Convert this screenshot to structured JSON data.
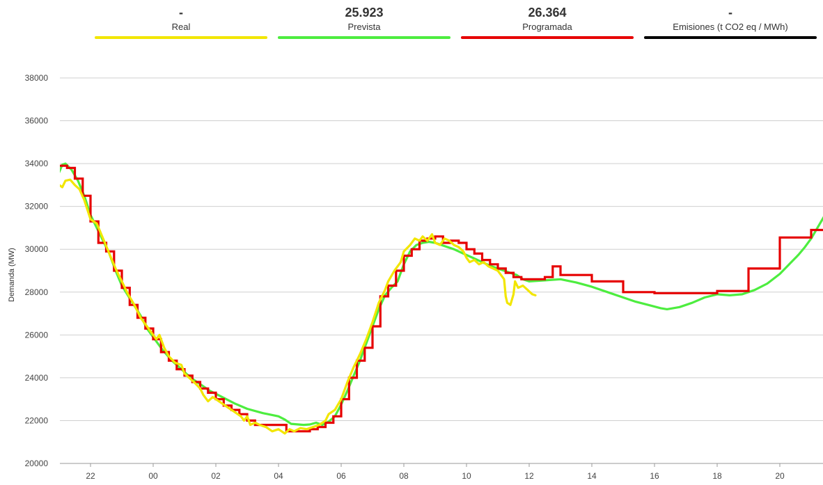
{
  "legend": [
    {
      "name": "Real",
      "value": "-",
      "color": "#f2e600"
    },
    {
      "name": "Prevista",
      "value": "25.923",
      "color": "#4ded3f"
    },
    {
      "name": "Programada",
      "value": "26.364",
      "color": "#e60000"
    },
    {
      "name": "Emisiones (t CO2 eq / MWh)",
      "value": "-",
      "color": "#000000"
    }
  ],
  "chart_data": {
    "type": "line",
    "ylabel": "Demanda (MW)",
    "xlabel": "",
    "ylim": [
      20000,
      38000
    ],
    "yticks": [
      20000,
      22000,
      24000,
      26000,
      28000,
      30000,
      32000,
      34000,
      36000,
      38000
    ],
    "xlim_hours": [
      21,
      45.3
    ],
    "xticks": [
      {
        "h": 22,
        "label": "22"
      },
      {
        "h": 24,
        "label": "00"
      },
      {
        "h": 26,
        "label": "02"
      },
      {
        "h": 28,
        "label": "04"
      },
      {
        "h": 30,
        "label": "06"
      },
      {
        "h": 32,
        "label": "08"
      },
      {
        "h": 34,
        "label": "10"
      },
      {
        "h": 36,
        "label": "12"
      },
      {
        "h": 38,
        "label": "14"
      },
      {
        "h": 40,
        "label": "16"
      },
      {
        "h": 42,
        "label": "18"
      },
      {
        "h": 44,
        "label": "20"
      }
    ],
    "grid": "horizontal",
    "x_units": "hour of day (continuing past midnight)",
    "series": [
      {
        "name": "Prevista",
        "color": "#4ded3f",
        "step": false,
        "points": [
          [
            21.0,
            33600
          ],
          [
            21.1,
            33950
          ],
          [
            21.2,
            34000
          ],
          [
            21.4,
            33700
          ],
          [
            21.6,
            33200
          ],
          [
            21.8,
            32500
          ],
          [
            22.0,
            31600
          ],
          [
            22.3,
            30700
          ],
          [
            22.6,
            29800
          ],
          [
            22.8,
            29000
          ],
          [
            23.0,
            28300
          ],
          [
            23.3,
            27600
          ],
          [
            23.6,
            26900
          ],
          [
            23.8,
            26300
          ],
          [
            24.0,
            25900
          ],
          [
            24.3,
            25300
          ],
          [
            24.6,
            24800
          ],
          [
            24.9,
            24400
          ],
          [
            25.2,
            24000
          ],
          [
            25.5,
            23700
          ],
          [
            25.8,
            23400
          ],
          [
            26.2,
            23100
          ],
          [
            26.6,
            22800
          ],
          [
            27.0,
            22550
          ],
          [
            27.5,
            22350
          ],
          [
            28.0,
            22200
          ],
          [
            28.2,
            22050
          ],
          [
            28.4,
            21850
          ],
          [
            28.8,
            21800
          ],
          [
            29.0,
            21820
          ],
          [
            29.2,
            21900
          ],
          [
            29.4,
            21800
          ],
          [
            29.6,
            21950
          ],
          [
            29.8,
            22200
          ],
          [
            30.0,
            22750
          ],
          [
            30.2,
            23400
          ],
          [
            30.4,
            24100
          ],
          [
            30.6,
            24800
          ],
          [
            30.8,
            25600
          ],
          [
            31.0,
            26400
          ],
          [
            31.2,
            27200
          ],
          [
            31.4,
            27850
          ],
          [
            31.6,
            28200
          ],
          [
            31.8,
            28500
          ],
          [
            32.0,
            29300
          ],
          [
            32.2,
            29900
          ],
          [
            32.4,
            30200
          ],
          [
            32.6,
            30300
          ],
          [
            32.8,
            30350
          ],
          [
            33.0,
            30300
          ],
          [
            33.3,
            30150
          ],
          [
            33.6,
            30000
          ],
          [
            33.9,
            29800
          ],
          [
            34.2,
            29600
          ],
          [
            34.5,
            29400
          ],
          [
            34.8,
            29200
          ],
          [
            35.1,
            29050
          ],
          [
            35.4,
            28900
          ],
          [
            35.6,
            28800
          ],
          [
            35.8,
            28600
          ],
          [
            36.0,
            28500
          ],
          [
            36.5,
            28550
          ],
          [
            37.0,
            28600
          ],
          [
            37.5,
            28450
          ],
          [
            38.0,
            28250
          ],
          [
            38.5,
            28000
          ],
          [
            39.0,
            27750
          ],
          [
            39.4,
            27550
          ],
          [
            39.8,
            27400
          ],
          [
            40.2,
            27250
          ],
          [
            40.4,
            27200
          ],
          [
            40.8,
            27300
          ],
          [
            41.2,
            27500
          ],
          [
            41.6,
            27750
          ],
          [
            42.0,
            27900
          ],
          [
            42.4,
            27850
          ],
          [
            42.8,
            27900
          ],
          [
            43.2,
            28100
          ],
          [
            43.6,
            28400
          ],
          [
            44.0,
            28850
          ],
          [
            44.3,
            29300
          ],
          [
            44.6,
            29750
          ],
          [
            44.8,
            30100
          ],
          [
            45.0,
            30500
          ],
          [
            45.2,
            31000
          ],
          [
            45.4,
            31500
          ],
          [
            45.6,
            32000
          ],
          [
            45.8,
            32400
          ],
          [
            45.9,
            32580
          ],
          [
            46.0,
            32550
          ],
          [
            46.1,
            32350
          ]
        ]
      },
      {
        "name": "Programada",
        "color": "#e60000",
        "step": true,
        "points": [
          [
            21.0,
            33900
          ],
          [
            21.25,
            33800
          ],
          [
            21.5,
            33300
          ],
          [
            21.75,
            32500
          ],
          [
            22.0,
            31300
          ],
          [
            22.25,
            30300
          ],
          [
            22.5,
            29900
          ],
          [
            22.75,
            29000
          ],
          [
            23.0,
            28200
          ],
          [
            23.25,
            27400
          ],
          [
            23.5,
            26800
          ],
          [
            23.75,
            26300
          ],
          [
            24.0,
            25800
          ],
          [
            24.25,
            25200
          ],
          [
            24.5,
            24800
          ],
          [
            24.75,
            24400
          ],
          [
            25.0,
            24100
          ],
          [
            25.25,
            23800
          ],
          [
            25.5,
            23500
          ],
          [
            25.75,
            23300
          ],
          [
            26.0,
            23000
          ],
          [
            26.25,
            22700
          ],
          [
            26.5,
            22500
          ],
          [
            26.75,
            22300
          ],
          [
            27.0,
            22000
          ],
          [
            27.25,
            21800
          ],
          [
            27.5,
            21800
          ],
          [
            27.75,
            21800
          ],
          [
            28.0,
            21800
          ],
          [
            28.25,
            21500
          ],
          [
            28.5,
            21500
          ],
          [
            28.75,
            21500
          ],
          [
            29.0,
            21600
          ],
          [
            29.25,
            21700
          ],
          [
            29.5,
            21900
          ],
          [
            29.75,
            22200
          ],
          [
            30.0,
            23000
          ],
          [
            30.25,
            24000
          ],
          [
            30.5,
            24800
          ],
          [
            30.75,
            25400
          ],
          [
            31.0,
            26400
          ],
          [
            31.25,
            27800
          ],
          [
            31.5,
            28300
          ],
          [
            31.75,
            29000
          ],
          [
            32.0,
            29700
          ],
          [
            32.25,
            30000
          ],
          [
            32.5,
            30400
          ],
          [
            32.75,
            30500
          ],
          [
            33.0,
            30600
          ],
          [
            33.25,
            30300
          ],
          [
            33.5,
            30400
          ],
          [
            33.75,
            30300
          ],
          [
            34.0,
            30000
          ],
          [
            34.25,
            29800
          ],
          [
            34.5,
            29500
          ],
          [
            34.75,
            29300
          ],
          [
            35.0,
            29100
          ],
          [
            35.25,
            28900
          ],
          [
            35.5,
            28700
          ],
          [
            35.75,
            28600
          ],
          [
            36.0,
            28600
          ],
          [
            36.25,
            28600
          ],
          [
            36.5,
            28700
          ],
          [
            36.75,
            29200
          ],
          [
            37.0,
            28800
          ],
          [
            38.0,
            28500
          ],
          [
            39.0,
            28000
          ],
          [
            40.0,
            27950
          ],
          [
            41.0,
            27950
          ],
          [
            42.0,
            28050
          ],
          [
            43.0,
            29100
          ],
          [
            44.0,
            30550
          ],
          [
            45.0,
            30900
          ],
          [
            46.2,
            30900
          ]
        ]
      },
      {
        "name": "Real",
        "color": "#f2e600",
        "step": false,
        "points": [
          [
            21.0,
            33000
          ],
          [
            21.1,
            32900
          ],
          [
            21.2,
            33200
          ],
          [
            21.35,
            33250
          ],
          [
            21.5,
            33000
          ],
          [
            21.65,
            32800
          ],
          [
            21.8,
            32300
          ],
          [
            22.0,
            31400
          ],
          [
            22.2,
            31200
          ],
          [
            22.4,
            30500
          ],
          [
            22.6,
            29800
          ],
          [
            22.8,
            29100
          ],
          [
            23.0,
            28500
          ],
          [
            23.2,
            27900
          ],
          [
            23.4,
            27400
          ],
          [
            23.6,
            26800
          ],
          [
            23.8,
            26400
          ],
          [
            24.0,
            26000
          ],
          [
            24.1,
            25800
          ],
          [
            24.2,
            26000
          ],
          [
            24.35,
            25400
          ],
          [
            24.5,
            25000
          ],
          [
            24.7,
            24700
          ],
          [
            24.9,
            24600
          ],
          [
            25.0,
            24200
          ],
          [
            25.15,
            24000
          ],
          [
            25.3,
            23800
          ],
          [
            25.5,
            23500
          ],
          [
            25.6,
            23200
          ],
          [
            25.75,
            22900
          ],
          [
            25.9,
            23100
          ],
          [
            26.0,
            23000
          ],
          [
            26.2,
            22800
          ],
          [
            26.4,
            22600
          ],
          [
            26.6,
            22400
          ],
          [
            26.8,
            22200
          ],
          [
            26.9,
            22000
          ],
          [
            27.0,
            22200
          ],
          [
            27.1,
            21800
          ],
          [
            27.25,
            21900
          ],
          [
            27.4,
            21800
          ],
          [
            27.6,
            21700
          ],
          [
            27.8,
            21500
          ],
          [
            28.0,
            21600
          ],
          [
            28.2,
            21400
          ],
          [
            28.35,
            21600
          ],
          [
            28.5,
            21500
          ],
          [
            28.7,
            21650
          ],
          [
            28.9,
            21600
          ],
          [
            29.1,
            21700
          ],
          [
            29.3,
            21800
          ],
          [
            29.5,
            22000
          ],
          [
            29.6,
            22300
          ],
          [
            29.8,
            22500
          ],
          [
            30.0,
            23000
          ],
          [
            30.2,
            23800
          ],
          [
            30.4,
            24500
          ],
          [
            30.6,
            25100
          ],
          [
            30.8,
            25800
          ],
          [
            31.0,
            26600
          ],
          [
            31.2,
            27500
          ],
          [
            31.4,
            28100
          ],
          [
            31.5,
            28500
          ],
          [
            31.7,
            29000
          ],
          [
            31.9,
            29400
          ],
          [
            32.0,
            29900
          ],
          [
            32.2,
            30200
          ],
          [
            32.35,
            30500
          ],
          [
            32.5,
            30400
          ],
          [
            32.6,
            30600
          ],
          [
            32.75,
            30400
          ],
          [
            32.9,
            30700
          ],
          [
            33.0,
            30300
          ],
          [
            33.15,
            30200
          ],
          [
            33.3,
            30500
          ],
          [
            33.45,
            30400
          ],
          [
            33.6,
            30200
          ],
          [
            33.75,
            30100
          ],
          [
            33.9,
            29900
          ],
          [
            34.0,
            29600
          ],
          [
            34.1,
            29400
          ],
          [
            34.25,
            29500
          ],
          [
            34.4,
            29300
          ],
          [
            34.55,
            29400
          ],
          [
            34.7,
            29200
          ],
          [
            34.85,
            29100
          ],
          [
            35.0,
            29000
          ],
          [
            35.1,
            28800
          ],
          [
            35.2,
            28600
          ],
          [
            35.25,
            27800
          ],
          [
            35.3,
            27500
          ],
          [
            35.4,
            27400
          ],
          [
            35.5,
            27900
          ],
          [
            35.55,
            28500
          ],
          [
            35.65,
            28200
          ],
          [
            35.8,
            28300
          ],
          [
            35.95,
            28100
          ],
          [
            36.1,
            27900
          ],
          [
            36.2,
            27850
          ]
        ]
      }
    ]
  }
}
